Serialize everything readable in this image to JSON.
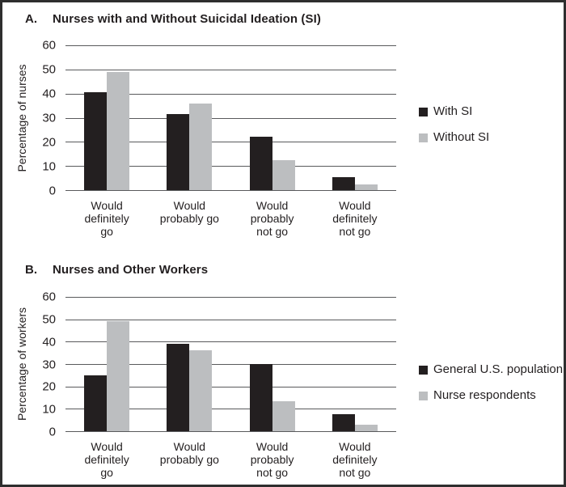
{
  "figure": {
    "background": "#ffffff",
    "border_color": "#2e2e2e"
  },
  "colors": {
    "black_series": "#231f20",
    "gray_series": "#bcbec0",
    "gridline": "#595a5c",
    "text": "#231f20"
  },
  "chart_data": [
    {
      "type": "bar",
      "panel_letter": "A.",
      "title": "Nurses with and Without Suicidal Ideation (SI)",
      "xlabel": "",
      "ylabel": "Percentage of nurses",
      "ylim": [
        0,
        60
      ],
      "yticks": [
        0,
        10,
        20,
        30,
        40,
        50,
        60
      ],
      "grid": true,
      "legend_position": "right",
      "categories": [
        "Would definitely go",
        "Would probably go",
        "Would probably not go",
        "Would definitely not go"
      ],
      "category_lines": [
        [
          "Would",
          "definitely",
          "go"
        ],
        [
          "Would",
          "probably go"
        ],
        [
          "Would",
          "probably",
          "not go"
        ],
        [
          "Would",
          "definitely",
          "not go"
        ]
      ],
      "series": [
        {
          "name": "With SI",
          "color": "#231f20",
          "values": [
            40.5,
            31.5,
            22,
            5.5
          ]
        },
        {
          "name": "Without SI",
          "color": "#bcbec0",
          "values": [
            49,
            36,
            12.5,
            2.5
          ]
        }
      ]
    },
    {
      "type": "bar",
      "panel_letter": "B.",
      "title": "Nurses and Other Workers",
      "xlabel": "",
      "ylabel": "Percentage of workers",
      "ylim": [
        0,
        60
      ],
      "yticks": [
        0,
        10,
        20,
        30,
        40,
        50,
        60
      ],
      "grid": true,
      "legend_position": "right",
      "categories": [
        "Would definitely go",
        "Would probably go",
        "Would probably not go",
        "Would definitely not go"
      ],
      "category_lines": [
        [
          "Would",
          "definitely",
          "go"
        ],
        [
          "Would",
          "probably go"
        ],
        [
          "Would",
          "probably",
          "not go"
        ],
        [
          "Would",
          "definitely",
          "not go"
        ]
      ],
      "series": [
        {
          "name": "General U.S. population",
          "color": "#231f20",
          "values": [
            25,
            39,
            30,
            7.5
          ]
        },
        {
          "name": "Nurse respondents",
          "color": "#bcbec0",
          "values": [
            49,
            36,
            13.5,
            3
          ]
        }
      ]
    }
  ]
}
